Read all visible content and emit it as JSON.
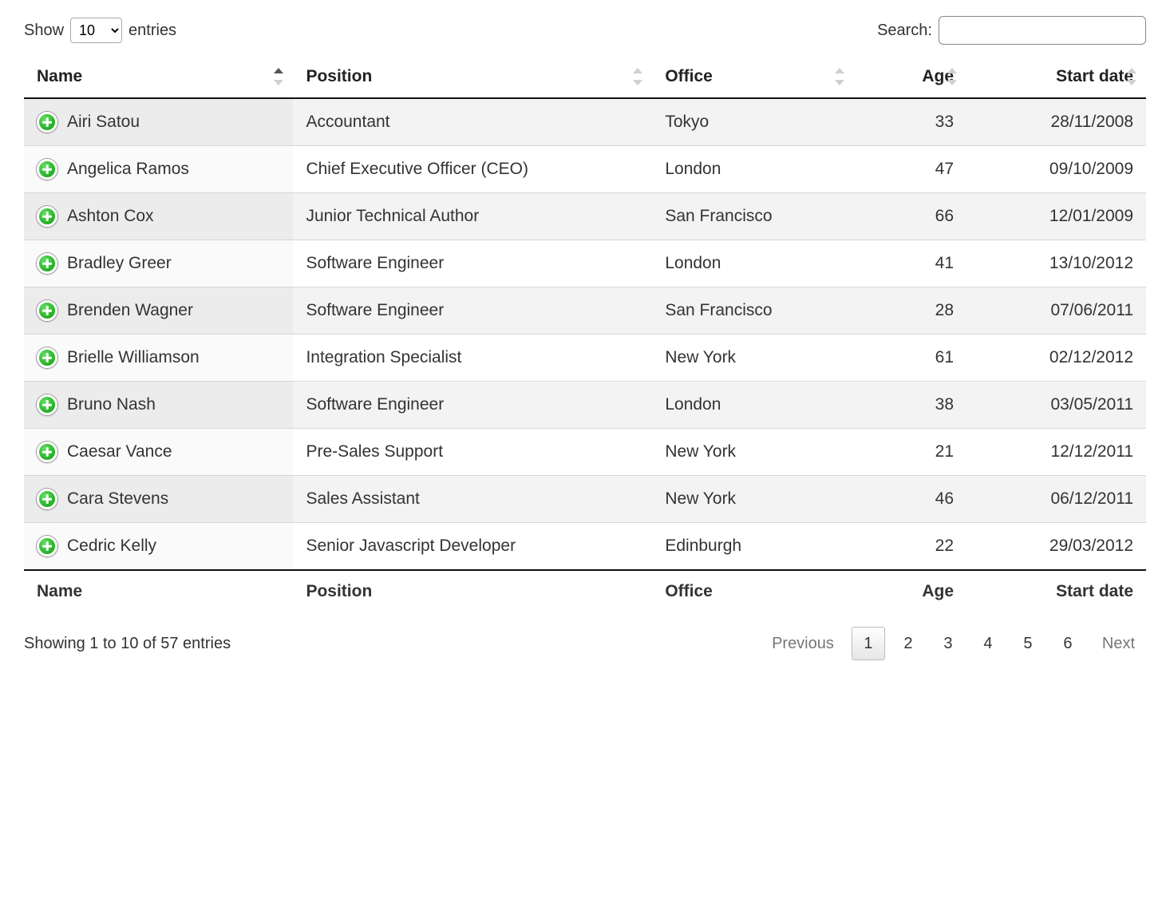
{
  "length": {
    "prefix": "Show",
    "suffix": "entries",
    "selected": "10",
    "options": [
      "10",
      "25",
      "50",
      "100"
    ]
  },
  "search": {
    "label": "Search:",
    "value": "",
    "placeholder": ""
  },
  "columns": [
    {
      "key": "name",
      "label": "Name",
      "align": "left",
      "sorted": "asc"
    },
    {
      "key": "position",
      "label": "Position",
      "align": "left",
      "sorted": null
    },
    {
      "key": "office",
      "label": "Office",
      "align": "left",
      "sorted": null
    },
    {
      "key": "age",
      "label": "Age",
      "align": "right",
      "sorted": null
    },
    {
      "key": "start_date",
      "label": "Start date",
      "align": "right",
      "sorted": null
    }
  ],
  "rows": [
    {
      "name": "Airi Satou",
      "position": "Accountant",
      "office": "Tokyo",
      "age": "33",
      "start_date": "28/11/2008"
    },
    {
      "name": "Angelica Ramos",
      "position": "Chief Executive Officer (CEO)",
      "office": "London",
      "age": "47",
      "start_date": "09/10/2009"
    },
    {
      "name": "Ashton Cox",
      "position": "Junior Technical Author",
      "office": "San Francisco",
      "age": "66",
      "start_date": "12/01/2009"
    },
    {
      "name": "Bradley Greer",
      "position": "Software Engineer",
      "office": "London",
      "age": "41",
      "start_date": "13/10/2012"
    },
    {
      "name": "Brenden Wagner",
      "position": "Software Engineer",
      "office": "San Francisco",
      "age": "28",
      "start_date": "07/06/2011"
    },
    {
      "name": "Brielle Williamson",
      "position": "Integration Specialist",
      "office": "New York",
      "age": "61",
      "start_date": "02/12/2012"
    },
    {
      "name": "Bruno Nash",
      "position": "Software Engineer",
      "office": "London",
      "age": "38",
      "start_date": "03/05/2011"
    },
    {
      "name": "Caesar Vance",
      "position": "Pre-Sales Support",
      "office": "New York",
      "age": "21",
      "start_date": "12/12/2011"
    },
    {
      "name": "Cara Stevens",
      "position": "Sales Assistant",
      "office": "New York",
      "age": "46",
      "start_date": "06/12/2011"
    },
    {
      "name": "Cedric Kelly",
      "position": "Senior Javascript Developer",
      "office": "Edinburgh",
      "age": "22",
      "start_date": "29/03/2012"
    }
  ],
  "info": "Showing 1 to 10 of 57 entries",
  "paginate": {
    "previous": "Previous",
    "next": "Next",
    "pages": [
      "1",
      "2",
      "3",
      "4",
      "5",
      "6"
    ],
    "current": "1"
  },
  "colors": {
    "row_odd_bg": "#f3f3f3",
    "row_even_bg": "#ffffff",
    "header_border": "#111111",
    "row_border": "#d7d7d7",
    "expand_button": "#2bb62b",
    "sort_inactive": "#d0d0d0",
    "sort_active": "#555555",
    "nav_disabled": "#777777",
    "current_page_border": "#bcbcbc"
  }
}
